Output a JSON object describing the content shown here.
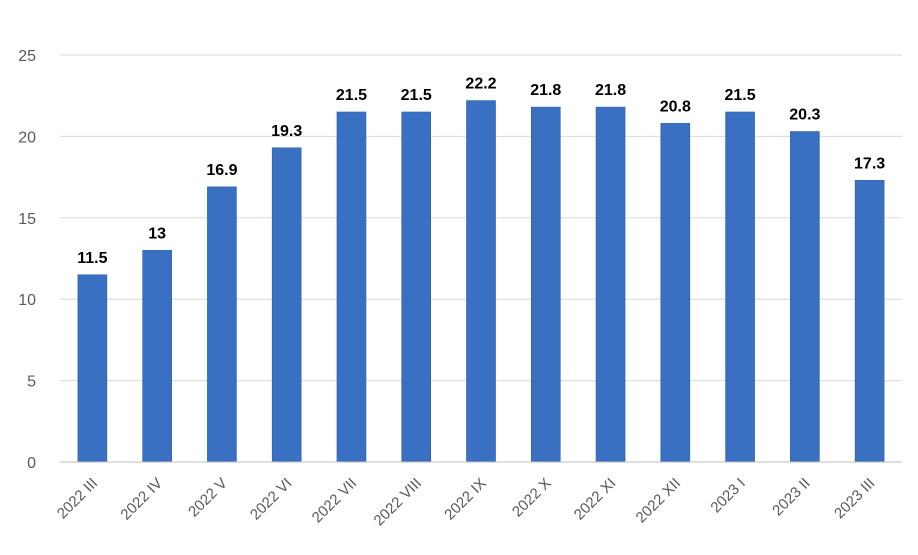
{
  "chart_data": {
    "type": "bar",
    "title": "",
    "xlabel": "",
    "ylabel": "",
    "categories": [
      "2022 III",
      "2022 IV",
      "2022 V",
      "2022 VI",
      "2022 VII",
      "2022 VIII",
      "2022 IX",
      "2022 X",
      "2022 XI",
      "2022 XII",
      "2023 I",
      "2023 II",
      "2023 III"
    ],
    "values": [
      11.5,
      13,
      16.9,
      19.3,
      21.5,
      21.5,
      22.2,
      21.8,
      21.8,
      20.8,
      21.5,
      20.3,
      17.3
    ],
    "data_labels": [
      "11.5",
      "13",
      "16.9",
      "19.3",
      "21.5",
      "21.5",
      "22.2",
      "21.8",
      "21.8",
      "20.8",
      "21.5",
      "20.3",
      "17.3"
    ],
    "y_ticks": [
      0,
      5,
      10,
      15,
      20,
      25
    ],
    "ylim": [
      0,
      25
    ],
    "grid": true,
    "legend": "none",
    "bar_color": "#3a70c2"
  }
}
